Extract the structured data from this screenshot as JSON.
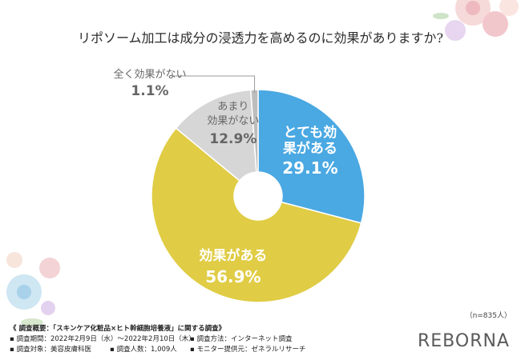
{
  "chart_data": {
    "type": "pie",
    "title": "リポソーム加工は成分の浸透力を高めるのに効果がありますか?",
    "slices": [
      {
        "label": "とても効果がある",
        "value": 29.1,
        "display": "29.1%",
        "color": "#4aa8e2"
      },
      {
        "label": "効果がある",
        "value": 56.9,
        "display": "56.9%",
        "color": "#e0cc45"
      },
      {
        "label": "あまり効果がない",
        "value": 12.9,
        "display": "12.9%",
        "color": "#d6d6d6"
      },
      {
        "label": "全く効果がない",
        "value": 1.1,
        "display": "1.1%",
        "color": "#bdbdbd"
      }
    ],
    "n_note": "（n=835人）"
  },
  "footer": {
    "survey_title": "《 調査概要：「スキンケア化粧品×ヒト幹細胞培養液」に関する調査》",
    "period": "▪ 調査期間：2022年2月9日（水）～2022年2月10日（木）",
    "method": "▪ 調査方法：インターネット調査",
    "target": "▪ 調査対象：美容皮膚科医",
    "count": "▪ 調査人数：1,009人",
    "provider": "▪ モニター提供元：ゼネラルリサーチ"
  },
  "logo": "REBORNA"
}
